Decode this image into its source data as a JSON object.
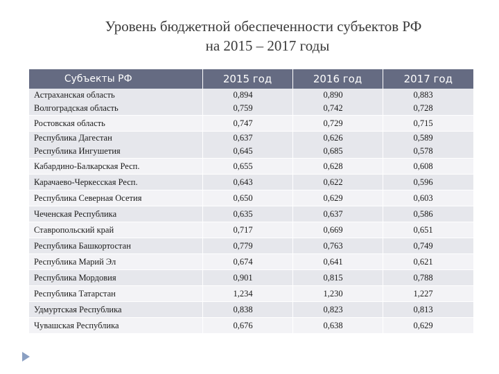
{
  "title": {
    "line1": "Уровень бюджетной обеспеченности субъектов РФ",
    "line2": "на 2015 – 2017 годы"
  },
  "table": {
    "headers": [
      "Субъекты РФ",
      "2015 год",
      "2016 год",
      "2017 год"
    ],
    "rows": [
      {
        "names": [
          "Астраханская область",
          "Волгоградская область"
        ],
        "v2015": [
          "0,894",
          "0,759"
        ],
        "v2016": [
          "0,890",
          "0,742"
        ],
        "v2017": [
          "0,883",
          "0,728"
        ]
      },
      {
        "names": [
          "Ростовская область"
        ],
        "v2015": [
          "0,747"
        ],
        "v2016": [
          "0,729"
        ],
        "v2017": [
          "0,715"
        ]
      },
      {
        "names": [
          "Республика Дагестан",
          "Республика Ингушетия"
        ],
        "v2015": [
          "0,637",
          "0,645"
        ],
        "v2016": [
          "0,626",
          "0,685"
        ],
        "v2017": [
          "0,589",
          "0,578"
        ]
      },
      {
        "names": [
          "Кабардино-Балкарская Респ."
        ],
        "v2015": [
          "0,655"
        ],
        "v2016": [
          "0,628"
        ],
        "v2017": [
          "0,608"
        ]
      },
      {
        "names": [
          "Карачаево-Черкесская Респ."
        ],
        "v2015": [
          "0,643"
        ],
        "v2016": [
          "0,622"
        ],
        "v2017": [
          "0,596"
        ]
      },
      {
        "names": [
          "Республика Северная Осетия"
        ],
        "v2015": [
          "0,650"
        ],
        "v2016": [
          "0,629"
        ],
        "v2017": [
          "0,603"
        ]
      },
      {
        "names": [
          "Чеченская Республика"
        ],
        "v2015": [
          "0,635"
        ],
        "v2016": [
          "0,637"
        ],
        "v2017": [
          "0,586"
        ]
      },
      {
        "names": [
          "Ставропольский край"
        ],
        "v2015": [
          "0,717"
        ],
        "v2016": [
          "0,669"
        ],
        "v2017": [
          "0,651"
        ]
      },
      {
        "names": [
          "Республика Башкортостан"
        ],
        "v2015": [
          "0,779"
        ],
        "v2016": [
          "0,763"
        ],
        "v2017": [
          "0,749"
        ]
      },
      {
        "names": [
          "Республика Марий Эл"
        ],
        "v2015": [
          "0,674"
        ],
        "v2016": [
          "0,641"
        ],
        "v2017": [
          "0,621"
        ]
      },
      {
        "names": [
          "Республика Мордовия"
        ],
        "v2015": [
          "0,901"
        ],
        "v2016": [
          "0,815"
        ],
        "v2017": [
          "0,788"
        ]
      },
      {
        "names": [
          "Республика Татарстан"
        ],
        "v2015": [
          "1,234"
        ],
        "v2016": [
          "1,230"
        ],
        "v2017": [
          "1,227"
        ]
      },
      {
        "names": [
          "Удмуртская Республика"
        ],
        "v2015": [
          "0,838"
        ],
        "v2016": [
          "0,823"
        ],
        "v2017": [
          "0,813"
        ]
      },
      {
        "names": [
          "Чувашская Республика"
        ],
        "v2015": [
          "0,676"
        ],
        "v2016": [
          "0,638"
        ],
        "v2017": [
          "0,629"
        ]
      }
    ]
  },
  "icons": {
    "slide_marker": "triangle-arrow-icon"
  },
  "colors": {
    "header_bg": "#656b82",
    "row_odd": "#e6e7ec",
    "row_even": "#f3f3f6",
    "arrow": "#8a9fc2"
  }
}
